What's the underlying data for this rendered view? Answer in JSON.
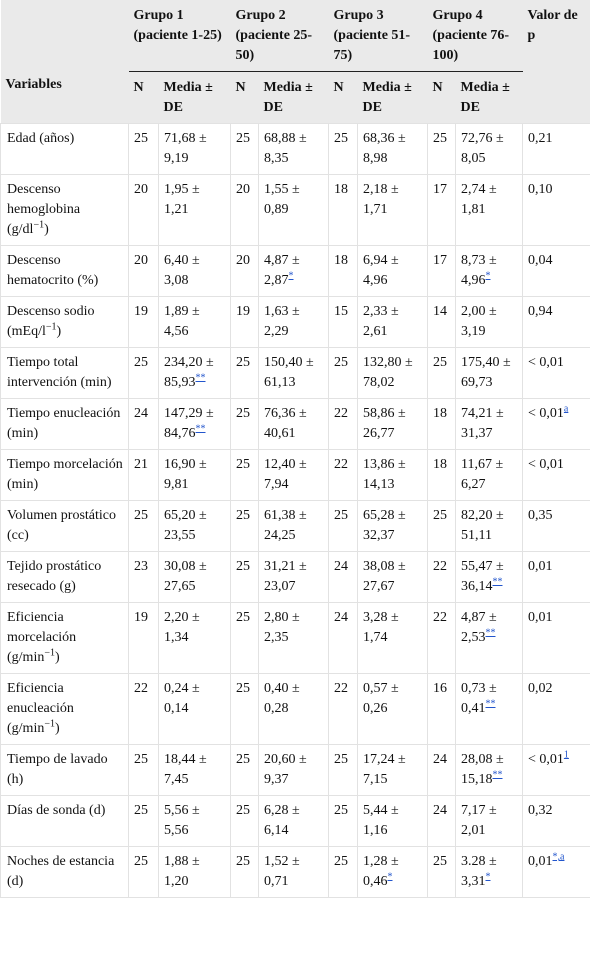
{
  "header": {
    "variables": "Variables",
    "p_value": "Valor de p",
    "n": "N",
    "mean": "Media ± DE",
    "groups": [
      "Grupo 1 (paciente 1-25)",
      "Grupo 2 (paciente 25-50)",
      "Grupo 3 (paciente 51-75)",
      "Grupo 4 (paciente 76-100)"
    ]
  },
  "rows": [
    {
      "variable": "Edad (años)",
      "groups": [
        {
          "n": 25,
          "mean": "71,68 ± 9,19"
        },
        {
          "n": 25,
          "mean": "68,88 ± 8,35"
        },
        {
          "n": 25,
          "mean": "68,36 ± 8,98"
        },
        {
          "n": 25,
          "mean": "72,76 ± 8,05"
        }
      ],
      "p": "0,21"
    },
    {
      "variable": "Descenso hemoglobina (g/dl",
      "variable_sup": "−1",
      "variable_end": ")",
      "groups": [
        {
          "n": 20,
          "mean": "1,95 ± 1,21"
        },
        {
          "n": 20,
          "mean": "1,55 ± 0,89"
        },
        {
          "n": 18,
          "mean": "2,18 ± 1,71"
        },
        {
          "n": 17,
          "mean": "2,74 ± 1,81"
        }
      ],
      "p": "0,10"
    },
    {
      "variable": "Descenso hematocrito (%)",
      "groups": [
        {
          "n": 20,
          "mean": "6,40 ± 3,08"
        },
        {
          "n": 20,
          "mean": "4,87 ± 2,87",
          "note": "*"
        },
        {
          "n": 18,
          "mean": "6,94 ± 4,96"
        },
        {
          "n": 17,
          "mean": "8,73 ± 4,96",
          "note": "*"
        }
      ],
      "p": "0,04"
    },
    {
      "variable": "Descenso sodio (mEq/l",
      "variable_sup": "−1",
      "variable_end": ")",
      "groups": [
        {
          "n": 19,
          "mean": "1,89 ± 4,56"
        },
        {
          "n": 19,
          "mean": "1,63 ± 2,29"
        },
        {
          "n": 15,
          "mean": "2,33 ± 2,61"
        },
        {
          "n": 14,
          "mean": "2,00 ± 3,19"
        }
      ],
      "p": "0,94"
    },
    {
      "variable": "Tiempo total intervención (min)",
      "groups": [
        {
          "n": 25,
          "mean": "234,20 ± 85,93",
          "note": "**"
        },
        {
          "n": 25,
          "mean": "150,40 ± 61,13"
        },
        {
          "n": 25,
          "mean": "132,80 ± 78,02"
        },
        {
          "n": 25,
          "mean": "175,40 ± 69,73"
        }
      ],
      "p": "< 0,01"
    },
    {
      "variable": "Tiempo enucleación (min)",
      "groups": [
        {
          "n": 24,
          "mean": "147,29 ± 84,76",
          "note": "**"
        },
        {
          "n": 25,
          "mean": "76,36 ± 40,61"
        },
        {
          "n": 22,
          "mean": "58,86 ± 26,77"
        },
        {
          "n": 18,
          "mean": "74,21 ± 31,37"
        }
      ],
      "p": "< 0,01",
      "p_note": "a"
    },
    {
      "variable": "Tiempo morcelación (min)",
      "groups": [
        {
          "n": 21,
          "mean": "16,90 ± 9,81"
        },
        {
          "n": 25,
          "mean": "12,40 ± 7,94"
        },
        {
          "n": 22,
          "mean": "13,86 ± 14,13"
        },
        {
          "n": 18,
          "mean": "11,67 ± 6,27"
        }
      ],
      "p": "< 0,01"
    },
    {
      "variable": "Volumen prostático (cc)",
      "groups": [
        {
          "n": 25,
          "mean": "65,20 ± 23,55"
        },
        {
          "n": 25,
          "mean": "61,38 ± 24,25"
        },
        {
          "n": 25,
          "mean": "65,28 ± 32,37"
        },
        {
          "n": 25,
          "mean": "82,20 ± 51,11"
        }
      ],
      "p": "0,35"
    },
    {
      "variable": "Tejido prostático resecado (g)",
      "groups": [
        {
          "n": 23,
          "mean": "30,08 ± 27,65"
        },
        {
          "n": 25,
          "mean": "31,21 ± 23,07"
        },
        {
          "n": 24,
          "mean": "38,08 ± 27,67"
        },
        {
          "n": 22,
          "mean": "55,47 ± 36,14",
          "note": "**"
        }
      ],
      "p": "0,01"
    },
    {
      "variable": "Eficiencia morcelación (g/min",
      "variable_sup": "−1",
      "variable_end": ")",
      "groups": [
        {
          "n": 19,
          "mean": "2,20 ± 1,34"
        },
        {
          "n": 25,
          "mean": "2,80 ± 2,35"
        },
        {
          "n": 24,
          "mean": "3,28 ± 1,74"
        },
        {
          "n": 22,
          "mean": "4,87 ± 2,53",
          "note": "**"
        }
      ],
      "p": "0,01"
    },
    {
      "variable": "Eficiencia enucleación (g/min",
      "variable_sup": "−1",
      "variable_end": ")",
      "groups": [
        {
          "n": 22,
          "mean": "0,24 ± 0,14"
        },
        {
          "n": 25,
          "mean": "0,40 ± 0,28"
        },
        {
          "n": 22,
          "mean": "0,57 ± 0,26"
        },
        {
          "n": 16,
          "mean": "0,73 ± 0,41",
          "note": "**"
        }
      ],
      "p": "0,02"
    },
    {
      "variable": "Tiempo de lavado (h)",
      "groups": [
        {
          "n": 25,
          "mean": "18,44 ± 7,45"
        },
        {
          "n": 25,
          "mean": "20,60 ± 9,37"
        },
        {
          "n": 25,
          "mean": "17,24 ± 7,15"
        },
        {
          "n": 24,
          "mean": "28,08 ± 15,18",
          "note": "**"
        }
      ],
      "p": "< 0,01",
      "p_note": "1"
    },
    {
      "variable": "Días de sonda (d)",
      "groups": [
        {
          "n": 25,
          "mean": "5,56 ± 5,56"
        },
        {
          "n": 25,
          "mean": "6,28 ± 6,14"
        },
        {
          "n": 25,
          "mean": "5,44 ± 1,16"
        },
        {
          "n": 24,
          "mean": "7,17 ± 2,01"
        }
      ],
      "p": "0,32"
    },
    {
      "variable": "Noches de estancia (d)",
      "groups": [
        {
          "n": 25,
          "mean": "1,88 ± 1,20"
        },
        {
          "n": 25,
          "mean": "1,52 ± 0,71"
        },
        {
          "n": 25,
          "mean": "1,28 ± 0,46",
          "note": "*"
        },
        {
          "n": 25,
          "mean": "3.28 ± 3,31",
          "note": "*"
        }
      ],
      "p": "0,01",
      "p_note": "*,a"
    }
  ]
}
